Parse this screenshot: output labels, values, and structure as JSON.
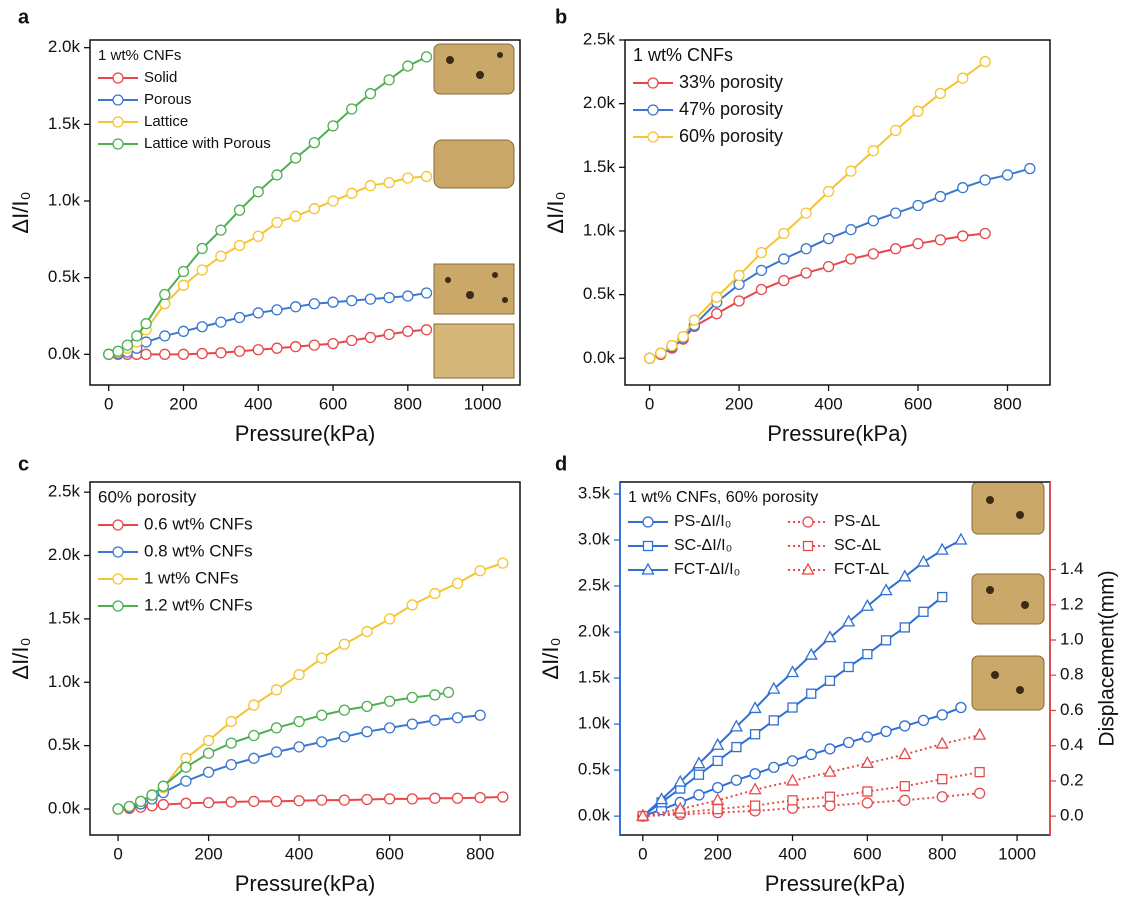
{
  "chart_data": [
    {
      "type": "line",
      "panel_label": "a",
      "xlabel": "Pressure(kPa)",
      "ylabel": "ΔI/I₀",
      "legend": "upper left",
      "legend_title": "1 wt% CNFs",
      "xlim": [
        -50,
        1100
      ],
      "xticks": [
        0,
        200,
        400,
        600,
        800,
        1000
      ],
      "ylim": [
        -200,
        2050
      ],
      "yticks": [
        {
          "value": 0,
          "label": "0.0k"
        },
        {
          "value": 500,
          "label": "0.5k"
        },
        {
          "value": 1000,
          "label": "1.0k"
        },
        {
          "value": 1500,
          "label": "1.5k"
        },
        {
          "value": 2000,
          "label": "2.0k"
        }
      ],
      "series": [
        {
          "name": "Solid",
          "color": "#e8474a",
          "marker": "circle",
          "x": [
            0,
            25,
            50,
            75,
            100,
            150,
            200,
            250,
            300,
            350,
            400,
            450,
            500,
            550,
            600,
            650,
            700,
            750,
            800,
            850
          ],
          "values": [
            0,
            0,
            0,
            0,
            0,
            0,
            0,
            5,
            10,
            20,
            30,
            40,
            50,
            60,
            70,
            90,
            110,
            130,
            150,
            160
          ]
        },
        {
          "name": "Porous",
          "color": "#3a78d0",
          "marker": "circle",
          "x": [
            0,
            25,
            50,
            75,
            100,
            150,
            200,
            250,
            300,
            350,
            400,
            450,
            500,
            550,
            600,
            650,
            700,
            750,
            800,
            850
          ],
          "values": [
            0,
            5,
            15,
            40,
            80,
            120,
            150,
            180,
            210,
            240,
            270,
            290,
            310,
            330,
            340,
            350,
            360,
            370,
            380,
            400
          ]
        },
        {
          "name": "Lattice",
          "color": "#f5c431",
          "marker": "circle",
          "x": [
            0,
            25,
            50,
            75,
            100,
            150,
            200,
            250,
            300,
            350,
            400,
            450,
            500,
            550,
            600,
            650,
            700,
            750,
            800,
            850
          ],
          "values": [
            0,
            15,
            40,
            80,
            160,
            330,
            450,
            550,
            640,
            710,
            770,
            860,
            900,
            950,
            1000,
            1050,
            1100,
            1120,
            1150,
            1160
          ]
        },
        {
          "name": "Lattice with Porous",
          "color": "#4caf50",
          "marker": "circle",
          "x": [
            0,
            25,
            50,
            75,
            100,
            150,
            200,
            250,
            300,
            350,
            400,
            450,
            500,
            550,
            600,
            650,
            700,
            750,
            800,
            850
          ],
          "values": [
            0,
            20,
            60,
            120,
            200,
            390,
            540,
            690,
            810,
            940,
            1060,
            1170,
            1280,
            1380,
            1490,
            1600,
            1700,
            1790,
            1880,
            1940
          ]
        }
      ]
    },
    {
      "type": "line",
      "panel_label": "b",
      "xlabel": "Pressure(kPa)",
      "ylabel": "ΔI/I₀",
      "legend": "upper left",
      "legend_title": "1 wt% CNFs",
      "xlim": [
        -55,
        895
      ],
      "xticks": [
        0,
        200,
        400,
        600,
        800
      ],
      "ylim": [
        -210,
        2500
      ],
      "yticks": [
        {
          "value": 0,
          "label": "0.0k"
        },
        {
          "value": 500,
          "label": "0.5k"
        },
        {
          "value": 1000,
          "label": "1.0k"
        },
        {
          "value": 1500,
          "label": "1.5k"
        },
        {
          "value": 2000,
          "label": "2.0k"
        },
        {
          "value": 2500,
          "label": "2.5k"
        }
      ],
      "series": [
        {
          "name": "33% porosity",
          "color": "#e8474a",
          "marker": "circle",
          "x": [
            0,
            25,
            50,
            75,
            100,
            150,
            200,
            250,
            300,
            350,
            400,
            450,
            500,
            550,
            600,
            650,
            700,
            750
          ],
          "values": [
            0,
            30,
            80,
            150,
            250,
            350,
            450,
            540,
            610,
            670,
            720,
            780,
            820,
            860,
            900,
            930,
            960,
            980
          ]
        },
        {
          "name": "47% porosity",
          "color": "#3a78d0",
          "marker": "circle",
          "x": [
            0,
            25,
            50,
            75,
            100,
            150,
            200,
            250,
            300,
            350,
            400,
            450,
            500,
            550,
            600,
            650,
            700,
            750,
            800,
            850
          ],
          "values": [
            0,
            40,
            90,
            160,
            260,
            440,
            580,
            690,
            780,
            860,
            940,
            1010,
            1080,
            1140,
            1200,
            1270,
            1340,
            1400,
            1440,
            1490
          ]
        },
        {
          "name": "60% porosity",
          "color": "#f5c431",
          "marker": "circle",
          "x": [
            0,
            25,
            50,
            75,
            100,
            150,
            200,
            250,
            300,
            350,
            400,
            450,
            500,
            550,
            600,
            650,
            700,
            750
          ],
          "values": [
            0,
            40,
            100,
            170,
            300,
            480,
            650,
            830,
            980,
            1140,
            1310,
            1470,
            1630,
            1790,
            1940,
            2080,
            2200,
            2330
          ]
        }
      ]
    },
    {
      "type": "line",
      "panel_label": "c",
      "xlabel": "Pressure(kPa)",
      "ylabel": "ΔI/I₀",
      "legend": "upper left",
      "legend_title": "60% porosity",
      "xlim": [
        -62,
        888
      ],
      "xticks": [
        0,
        200,
        400,
        600,
        800
      ],
      "ylim": [
        -205,
        2580
      ],
      "yticks": [
        {
          "value": 0,
          "label": "0.0k"
        },
        {
          "value": 500,
          "label": "0.5k"
        },
        {
          "value": 1000,
          "label": "1.0k"
        },
        {
          "value": 1500,
          "label": "1.5k"
        },
        {
          "value": 2000,
          "label": "2.0k"
        },
        {
          "value": 2500,
          "label": "2.5k"
        }
      ],
      "series": [
        {
          "name": "0.6 wt% CNFs",
          "color": "#e8474a",
          "marker": "circle",
          "x": [
            0,
            25,
            50,
            75,
            100,
            150,
            200,
            250,
            300,
            350,
            400,
            450,
            500,
            550,
            600,
            650,
            700,
            750,
            800,
            850
          ],
          "values": [
            0,
            5,
            15,
            25,
            35,
            45,
            50,
            55,
            60,
            60,
            65,
            70,
            70,
            75,
            80,
            80,
            85,
            85,
            90,
            95
          ]
        },
        {
          "name": "0.8 wt% CNFs",
          "color": "#3a78d0",
          "marker": "circle",
          "x": [
            0,
            25,
            50,
            75,
            100,
            150,
            200,
            250,
            300,
            350,
            400,
            450,
            500,
            550,
            600,
            650,
            700,
            750,
            800
          ],
          "values": [
            0,
            15,
            40,
            80,
            130,
            220,
            290,
            350,
            400,
            450,
            490,
            530,
            570,
            610,
            640,
            670,
            700,
            720,
            740
          ]
        },
        {
          "name": "1 wt% CNFs",
          "color": "#f5c431",
          "marker": "circle",
          "x": [
            0,
            25,
            50,
            75,
            100,
            150,
            200,
            250,
            300,
            350,
            400,
            450,
            500,
            550,
            600,
            650,
            700,
            750,
            800,
            850
          ],
          "values": [
            0,
            20,
            60,
            110,
            170,
            400,
            540,
            690,
            820,
            940,
            1060,
            1190,
            1300,
            1400,
            1500,
            1610,
            1700,
            1780,
            1880,
            1940
          ]
        },
        {
          "name": "1.2 wt% CNFs",
          "color": "#4caf50",
          "marker": "circle",
          "x": [
            0,
            25,
            50,
            75,
            100,
            150,
            200,
            250,
            300,
            350,
            400,
            450,
            500,
            550,
            600,
            650,
            700,
            730
          ],
          "values": [
            0,
            20,
            60,
            110,
            180,
            330,
            440,
            520,
            580,
            640,
            690,
            740,
            780,
            810,
            850,
            880,
            900,
            920
          ]
        }
      ]
    },
    {
      "type": "line",
      "panel_label": "d",
      "xlabel": "Pressure(kPa)",
      "ylabel": "ΔI/I₀",
      "y2label": "Displacement(mm)",
      "ycolor": "#2f6fd6",
      "y2color": "#e64b4b",
      "legend": "upper left",
      "legend_title": "1 wt% CNFs, 60% porosity",
      "xlim": [
        -61,
        1088
      ],
      "xticks": [
        0,
        200,
        400,
        600,
        800,
        1000
      ],
      "ylim": [
        -205,
        3630
      ],
      "yticks": [
        {
          "value": 0,
          "label": "0.0k"
        },
        {
          "value": 500,
          "label": "0.5k"
        },
        {
          "value": 1000,
          "label": "1.0k"
        },
        {
          "value": 1500,
          "label": "1.5k"
        },
        {
          "value": 2000,
          "label": "2.0k"
        },
        {
          "value": 2500,
          "label": "2.5k"
        },
        {
          "value": 3000,
          "label": "3.0k"
        },
        {
          "value": 3500,
          "label": "3.5k"
        }
      ],
      "y2lim": [
        -0.107,
        1.897
      ],
      "y2ticks": [
        {
          "value": 0,
          "label": "0.0"
        },
        0.2,
        0.4,
        0.6,
        0.8,
        {
          "value": 1,
          "label": "1.0"
        },
        1.2,
        1.4
      ],
      "series": [
        {
          "name": "PS-ΔI/I₀",
          "color": "#2f6fd6",
          "marker": "circle",
          "x": [
            0,
            50,
            100,
            150,
            200,
            250,
            300,
            350,
            400,
            450,
            500,
            550,
            600,
            650,
            700,
            750,
            800,
            850
          ],
          "values": [
            0,
            70,
            150,
            230,
            310,
            390,
            460,
            530,
            600,
            670,
            730,
            800,
            860,
            920,
            980,
            1040,
            1100,
            1180
          ]
        },
        {
          "name": "SC-ΔI/I₀",
          "color": "#2f6fd6",
          "marker": "square",
          "x": [
            0,
            50,
            100,
            150,
            200,
            250,
            300,
            350,
            400,
            450,
            500,
            550,
            600,
            650,
            700,
            750,
            800
          ],
          "values": [
            0,
            150,
            300,
            450,
            600,
            750,
            890,
            1040,
            1180,
            1330,
            1470,
            1620,
            1760,
            1910,
            2050,
            2220,
            2380
          ]
        },
        {
          "name": "FCT-ΔI/I₀",
          "color": "#2f6fd6",
          "marker": "triangle",
          "x": [
            0,
            50,
            100,
            150,
            200,
            250,
            300,
            350,
            400,
            450,
            500,
            550,
            600,
            650,
            700,
            750,
            800,
            850
          ],
          "values": [
            0,
            180,
            370,
            570,
            770,
            970,
            1170,
            1380,
            1560,
            1750,
            1940,
            2110,
            2280,
            2450,
            2600,
            2760,
            2890,
            3000
          ]
        },
        {
          "name": "PS-ΔL",
          "color": "#e64b4b",
          "marker": "circle",
          "linestyle": "dotted",
          "axis": "y2",
          "x": [
            0,
            100,
            200,
            300,
            400,
            500,
            600,
            700,
            800,
            900
          ],
          "values": [
            0,
            0.01,
            0.02,
            0.03,
            0.045,
            0.06,
            0.075,
            0.09,
            0.11,
            0.13
          ]
        },
        {
          "name": "SC-ΔL",
          "color": "#e64b4b",
          "marker": "square",
          "linestyle": "dotted",
          "axis": "y2",
          "x": [
            0,
            100,
            200,
            300,
            400,
            500,
            600,
            700,
            800,
            900
          ],
          "values": [
            0,
            0.02,
            0.04,
            0.06,
            0.09,
            0.11,
            0.14,
            0.17,
            0.21,
            0.25
          ]
        },
        {
          "name": "FCT-ΔL",
          "color": "#e64b4b",
          "marker": "triangle",
          "linestyle": "dotted",
          "axis": "y2",
          "x": [
            0,
            100,
            200,
            300,
            400,
            500,
            600,
            700,
            800,
            900
          ],
          "values": [
            0,
            0.04,
            0.09,
            0.15,
            0.2,
            0.25,
            0.3,
            0.35,
            0.41,
            0.46
          ]
        }
      ]
    }
  ]
}
